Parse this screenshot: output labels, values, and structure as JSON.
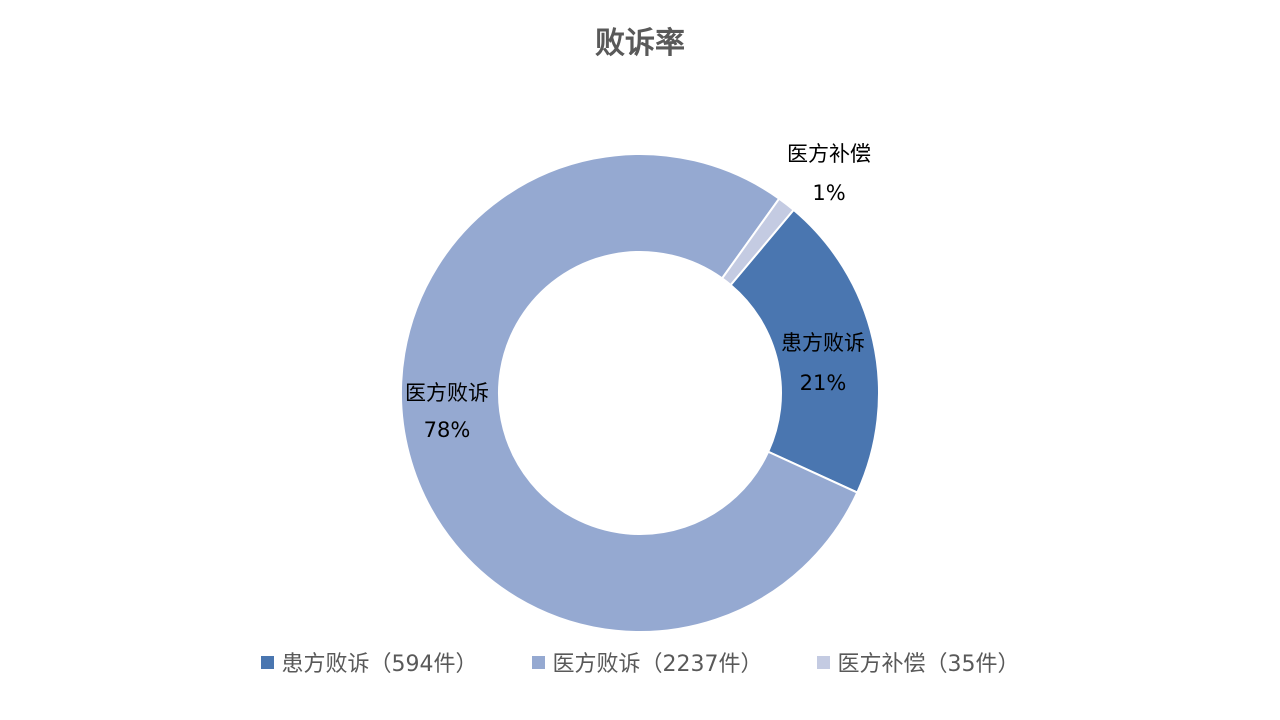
{
  "chart_data": {
    "type": "pie",
    "variant": "donut",
    "title": "败诉率",
    "categories": [
      "患方败诉",
      "医方败诉",
      "医方补偿"
    ],
    "values": [
      594,
      2237,
      35
    ],
    "percent_labels": [
      "21%",
      "78%",
      "1%"
    ],
    "legend_labels": [
      "患方败诉（594件）",
      "医方败诉（2237件）",
      "医方补偿（35件）"
    ],
    "colors": [
      "#4a76b0",
      "#95a9d1",
      "#c4cbe2"
    ],
    "legend_position": "bottom",
    "start_angle_deg": 40
  }
}
